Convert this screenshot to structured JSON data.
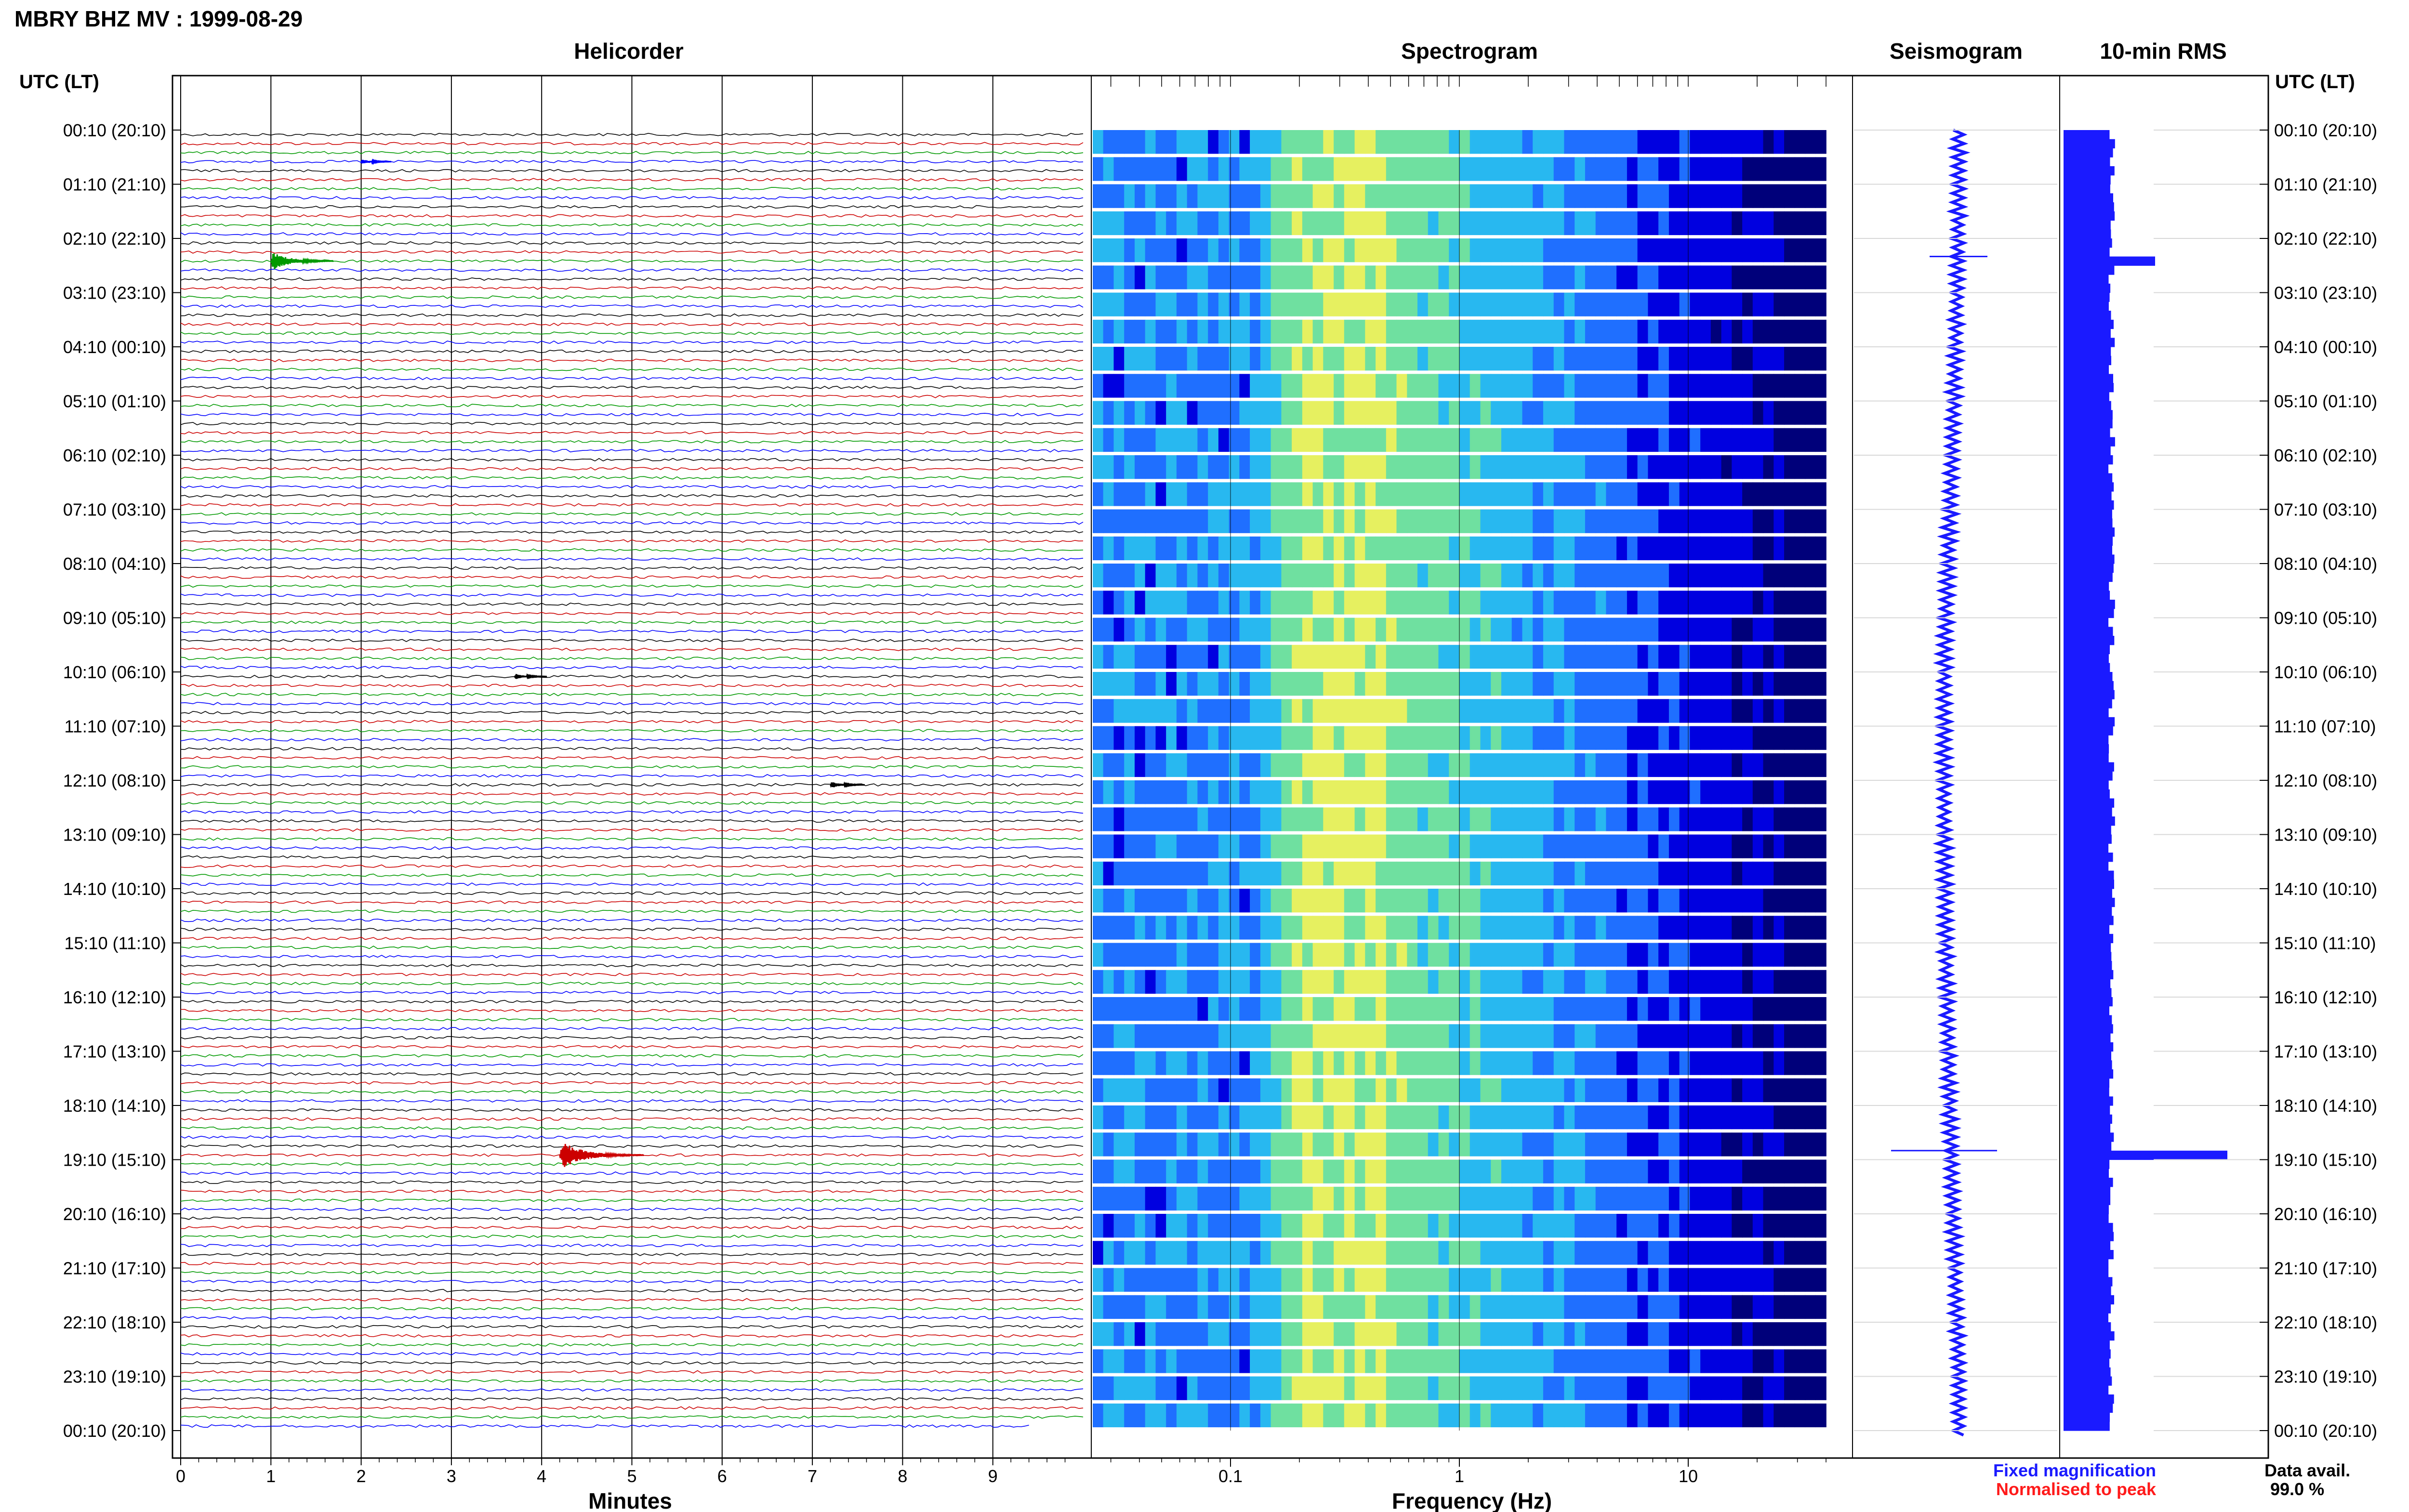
{
  "title": "MBRY BHZ MV : 1999-08-29",
  "panels": {
    "helicorder": "Helicorder",
    "spectrogram": "Spectrogram",
    "seismogram": "Seismogram",
    "rms": "10-min RMS"
  },
  "time_axis_label": "UTC (LT)",
  "time_labels": [
    "00:10 (20:10)",
    "01:10 (21:10)",
    "02:10 (22:10)",
    "03:10 (23:10)",
    "04:10 (00:10)",
    "05:10 (01:10)",
    "06:10 (02:10)",
    "07:10 (03:10)",
    "08:10 (04:10)",
    "09:10 (05:10)",
    "10:10 (06:10)",
    "11:10 (07:10)",
    "12:10 (08:10)",
    "13:10 (09:10)",
    "14:10 (10:10)",
    "15:10 (11:10)",
    "16:10 (12:10)",
    "17:10 (13:10)",
    "18:10 (14:10)",
    "19:10 (15:10)",
    "20:10 (16:10)",
    "21:10 (17:10)",
    "22:10 (18:10)",
    "23:10 (19:10)",
    "00:10 (20:10)"
  ],
  "minutes_ticks": [
    "0",
    "1",
    "2",
    "3",
    "4",
    "5",
    "6",
    "7",
    "8",
    "9"
  ],
  "minutes_label": "Minutes",
  "freq_ticks": [
    "0.1",
    "1",
    "10"
  ],
  "freq_label": "Frequency (Hz)",
  "legend": {
    "fixed": "Fixed magnification",
    "normalised": "Normalised to peak",
    "fixed_color": "#1a1aff",
    "normalised_color": "#ff1a1a"
  },
  "data_avail": {
    "label": "Data avail.",
    "value": "99.0 %"
  },
  "colors": {
    "trace_cycle": [
      "#000000",
      "#cc0000",
      "#009900",
      "#0000ff"
    ],
    "seismogram": "#1a1aff",
    "rms": "#1a1aff"
  },
  "chart_data": [
    {
      "type": "helicorder",
      "xlabel": "Minutes",
      "xlim": [
        0,
        10
      ],
      "rows": 144,
      "minutes_per_row": 10,
      "events": [
        {
          "row": 3,
          "minute": 2.0,
          "size": 0.5
        },
        {
          "row": 14,
          "minute": 1.0,
          "size": 2.0
        },
        {
          "row": 60,
          "minute": 3.7,
          "size": 0.6
        },
        {
          "row": 72,
          "minute": 7.2,
          "size": 0.7
        },
        {
          "row": 113,
          "minute": 4.2,
          "size": 3.0
        }
      ]
    },
    {
      "type": "heatmap",
      "xlabel": "Frequency (Hz)",
      "xscale": "log",
      "xlim": [
        0.025,
        40
      ],
      "color_scale": [
        "#00007a",
        "#0000e0",
        "#1f6fff",
        "#28b8f0",
        "#6fe0a0",
        "#e6f060"
      ],
      "peak_band_hz": [
        0.2,
        0.5
      ]
    },
    {
      "type": "line",
      "name": "Seismogram",
      "description_units": "10-min rows, fixed magnification",
      "spikes_at_rows": [
        14,
        113
      ]
    },
    {
      "type": "bar",
      "name": "10-min RMS",
      "rows": 144,
      "baseline_level": 1.0,
      "peaks": [
        {
          "row": 14,
          "level": 1.9
        },
        {
          "row": 113,
          "level": 3.4
        }
      ]
    }
  ]
}
